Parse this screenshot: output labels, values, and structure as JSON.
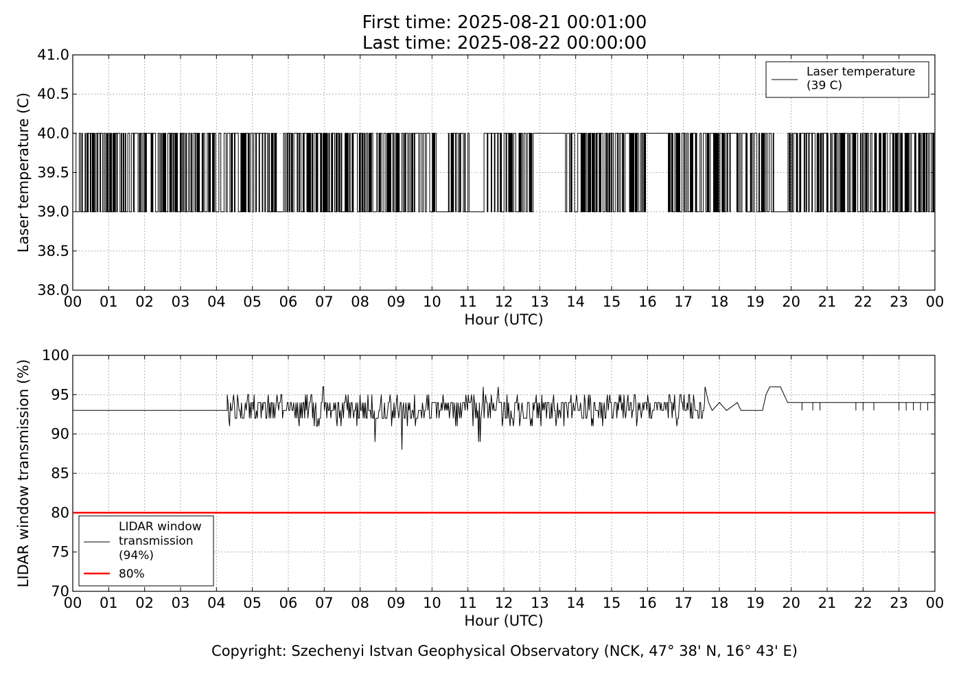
{
  "title": {
    "line1": "First time: 2025-08-21 00:01:00",
    "line2": "Last time: 2025-08-22 00:00:00"
  },
  "footer": {
    "copyright": "Copyright: Szechenyi Istvan Geophysical Observatory (NCK, 47° 38' N, 16° 43' E)"
  },
  "colors": {
    "series": "#000000",
    "threshold": "#ff0000",
    "grid": "#808080"
  },
  "chart_data": [
    {
      "type": "line",
      "ylabel": "Laser temperature (C)",
      "xlabel": "Hour (UTC)",
      "xlim": [
        0,
        24
      ],
      "ylim": [
        38.0,
        41.0
      ],
      "x_ticks": [
        "00",
        "01",
        "02",
        "03",
        "04",
        "05",
        "06",
        "07",
        "08",
        "09",
        "10",
        "11",
        "12",
        "13",
        "14",
        "15",
        "16",
        "17",
        "18",
        "19",
        "20",
        "21",
        "22",
        "23",
        "00"
      ],
      "y_ticks": [
        "38.0",
        "38.5",
        "39.0",
        "39.5",
        "40.0",
        "40.5",
        "41.0"
      ],
      "grid": true,
      "legend_position": "top-right",
      "series": [
        {
          "name": "Laser temperature\n(39 C)",
          "legend_lines": [
            "Laser temperature",
            "(39 C)"
          ],
          "color": "#000000",
          "values_range": [
            39.0,
            40.0
          ],
          "segments": [
            {
              "x": 0.0,
              "y": 39.0
            },
            {
              "x": 0.05,
              "y": 40.0
            },
            {
              "x": 0.1,
              "y": 39.0
            },
            {
              "x": 0.2,
              "y": 40.0
            },
            {
              "x": 0.3,
              "y": 39.0
            },
            {
              "x": 0.4,
              "y": 40.0
            },
            {
              "x": 0.8,
              "y": 39.0
            },
            {
              "x": 1.0,
              "y": 40.0
            },
            {
              "x": 12.8,
              "y": 40.0
            },
            {
              "x": 13.7,
              "y": 39.0
            },
            {
              "x": 15.9,
              "y": 40.0
            },
            {
              "x": 16.6,
              "y": 39.0
            },
            {
              "x": 19.5,
              "y": 39.0
            },
            {
              "x": 19.9,
              "y": 39.0
            },
            {
              "x": 24.0,
              "y": 39.0
            }
          ],
          "dense_toggling_intervals": [
            [
              0.0,
              12.8
            ],
            [
              13.8,
              15.9
            ],
            [
              16.6,
              19.5
            ],
            [
              19.9,
              24.0
            ]
          ],
          "flat_high_intervals": [
            [
              12.85,
              13.7
            ],
            [
              15.95,
              16.55
            ]
          ],
          "flat_low_intervals": [
            [
              10.15,
              10.45
            ],
            [
              11.05,
              11.45
            ],
            [
              19.55,
              19.9
            ]
          ]
        }
      ]
    },
    {
      "type": "line",
      "ylabel": "LIDAR window transmission (%)",
      "xlabel": "Hour (UTC)",
      "xlim": [
        0,
        24
      ],
      "ylim": [
        70,
        100
      ],
      "x_ticks": [
        "00",
        "01",
        "02",
        "03",
        "04",
        "05",
        "06",
        "07",
        "08",
        "09",
        "10",
        "11",
        "12",
        "13",
        "14",
        "15",
        "16",
        "17",
        "18",
        "19",
        "20",
        "21",
        "22",
        "23",
        "00"
      ],
      "y_ticks": [
        "70",
        "75",
        "80",
        "85",
        "90",
        "95",
        "100"
      ],
      "grid": true,
      "legend_position": "bottom-left",
      "series": [
        {
          "name": "LIDAR window\ntransmission\n(94%)",
          "legend_lines": [
            "LIDAR window",
            "transmission",
            "(94%)"
          ],
          "color": "#000000",
          "baseline": [
            {
              "x": 0.0,
              "y": 93
            },
            {
              "x": 4.3,
              "y": 93
            }
          ],
          "noisy_interval": [
            4.3,
            17.6
          ],
          "noisy_range": [
            92,
            95
          ],
          "notable_points": [
            {
              "x": 7.0,
              "y": 96
            },
            {
              "x": 8.4,
              "y": 89
            },
            {
              "x": 9.0,
              "y": 89
            },
            {
              "x": 9.2,
              "y": 88
            },
            {
              "x": 10.4,
              "y": 90
            },
            {
              "x": 11.3,
              "y": 89
            },
            {
              "x": 11.4,
              "y": 96
            },
            {
              "x": 11.8,
              "y": 96
            },
            {
              "x": 17.6,
              "y": 96
            },
            {
              "x": 19.4,
              "y": 96
            },
            {
              "x": 19.6,
              "y": 96
            }
          ],
          "late_profile": [
            {
              "x": 17.6,
              "y": 96
            },
            {
              "x": 17.7,
              "y": 94
            },
            {
              "x": 17.8,
              "y": 93
            },
            {
              "x": 18.0,
              "y": 94
            },
            {
              "x": 18.2,
              "y": 93
            },
            {
              "x": 18.5,
              "y": 94
            },
            {
              "x": 18.6,
              "y": 93
            },
            {
              "x": 19.2,
              "y": 93
            },
            {
              "x": 19.3,
              "y": 95
            },
            {
              "x": 19.4,
              "y": 96
            },
            {
              "x": 19.7,
              "y": 96
            },
            {
              "x": 19.8,
              "y": 95
            },
            {
              "x": 19.9,
              "y": 94
            },
            {
              "x": 24.0,
              "y": 94
            }
          ],
          "late_dips": [
            20.3,
            20.6,
            20.8,
            21.8,
            22.0,
            22.3,
            23.0,
            23.2,
            23.4,
            23.6,
            23.8
          ]
        },
        {
          "name": "80%",
          "legend_lines": [
            "80%"
          ],
          "color": "#ff0000",
          "x": [
            0,
            24
          ],
          "values": [
            80,
            80
          ]
        }
      ]
    }
  ]
}
